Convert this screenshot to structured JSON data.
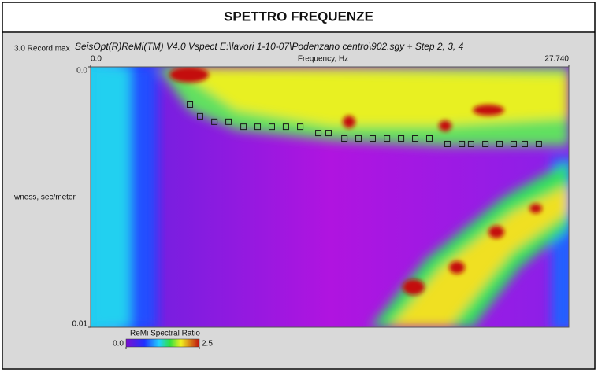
{
  "chart_data": {
    "type": "scatter",
    "title": "SPETTRO FREQUENZE",
    "subtitle": "SeisOpt(R)ReMi(TM) V4.0 Vspect E:\\lavori 1-10-07\\Podenzano centro\\902.sgy + Step 2, 3, 4",
    "annotation": "3.0 Record max",
    "x_label": "Frequency, Hz",
    "y_label": "wness, sec/meter",
    "x": [
      5.76,
      6.35,
      7.18,
      8.0,
      8.87,
      9.69,
      10.51,
      11.33,
      12.16,
      13.21,
      13.8,
      14.72,
      15.54,
      16.36,
      17.19,
      18.01,
      18.83,
      19.65,
      20.7,
      21.53,
      22.07,
      22.9,
      23.72,
      24.54,
      25.18,
      26.0
    ],
    "values": [
      0.00145,
      0.0019,
      0.00211,
      0.00211,
      0.0023,
      0.0023,
      0.0023,
      0.0023,
      0.0023,
      0.00254,
      0.00254,
      0.00275,
      0.00275,
      0.00275,
      0.00275,
      0.00275,
      0.00275,
      0.00275,
      0.00296,
      0.00296,
      0.00296,
      0.00296,
      0.00296,
      0.00296,
      0.00296,
      0.00296
    ],
    "xlim": [
      0,
      27.74
    ],
    "xticks": [
      {
        "value": 0,
        "label": "0.0"
      },
      {
        "value": 27.74,
        "label": "27.740"
      }
    ],
    "ylim": [
      0,
      0.01
    ],
    "yticks": [
      {
        "value": 0,
        "label": "0.0"
      },
      0.01
    ],
    "y_inverted": true,
    "marker_color": "#1a1a1a",
    "colorbar": {
      "label": "ReMi Spectral Ratio",
      "ticks": [
        {
          "value": 0,
          "label": "0.0"
        },
        2.5
      ]
    }
  }
}
